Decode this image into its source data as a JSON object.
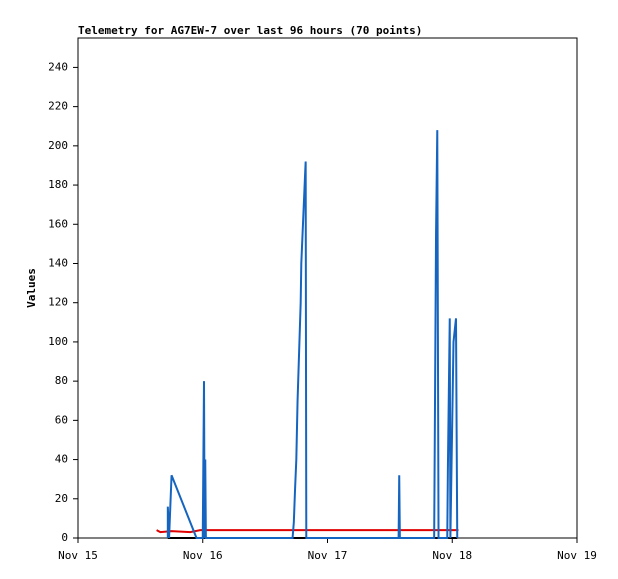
{
  "chart_data": {
    "type": "line",
    "title": "Telemetry for AG7EW-7 over last 96 hours (70 points)",
    "y_label": "Values",
    "xlim": [
      0,
      4
    ],
    "xticks": [
      {
        "value": 0,
        "label": "Nov 15"
      },
      {
        "value": 1,
        "label": "Nov 16"
      },
      {
        "value": 2,
        "label": "Nov 17"
      },
      {
        "value": 3,
        "label": "Nov 18"
      },
      {
        "value": 4,
        "label": "Nov 19"
      }
    ],
    "ylim": [
      0,
      255
    ],
    "yticks": [
      0,
      20,
      40,
      60,
      80,
      100,
      120,
      140,
      160,
      180,
      200,
      220,
      240
    ],
    "series": [
      {
        "color": "#000000",
        "x": [
          0.72,
          3.04
        ],
        "values": [
          0,
          0
        ]
      },
      {
        "color": "#e00000",
        "x": [
          0.63,
          0.66,
          0.75,
          0.9,
          0.98,
          1.5,
          2.0,
          2.5,
          3.05
        ],
        "values": [
          4,
          3,
          3.5,
          3,
          4,
          4,
          4,
          4,
          4
        ]
      },
      {
        "color": "#1565c0",
        "x": [
          0.72,
          0.72,
          0.73,
          0.75,
          0.95,
          1.0,
          1.01,
          1.015,
          1.02,
          1.025,
          1.72,
          1.73,
          1.74,
          1.75,
          1.76,
          1.77,
          1.785,
          1.79,
          1.81,
          1.82,
          1.825,
          1.83,
          2.57,
          2.575,
          2.58,
          2.855,
          2.86,
          2.87,
          2.88,
          2.885,
          2.89,
          2.96,
          2.965,
          2.98,
          2.985,
          3.0,
          3.01,
          3.03,
          3.035,
          3.04
        ],
        "values": [
          0,
          16,
          0,
          32,
          0,
          0,
          80,
          0,
          40,
          0,
          0,
          8,
          25,
          40,
          70,
          90,
          120,
          140,
          170,
          185,
          192,
          0,
          0,
          32,
          0,
          0,
          50,
          155,
          208,
          105,
          0,
          0,
          35,
          112,
          0,
          60,
          100,
          112,
          55,
          0
        ]
      }
    ]
  }
}
